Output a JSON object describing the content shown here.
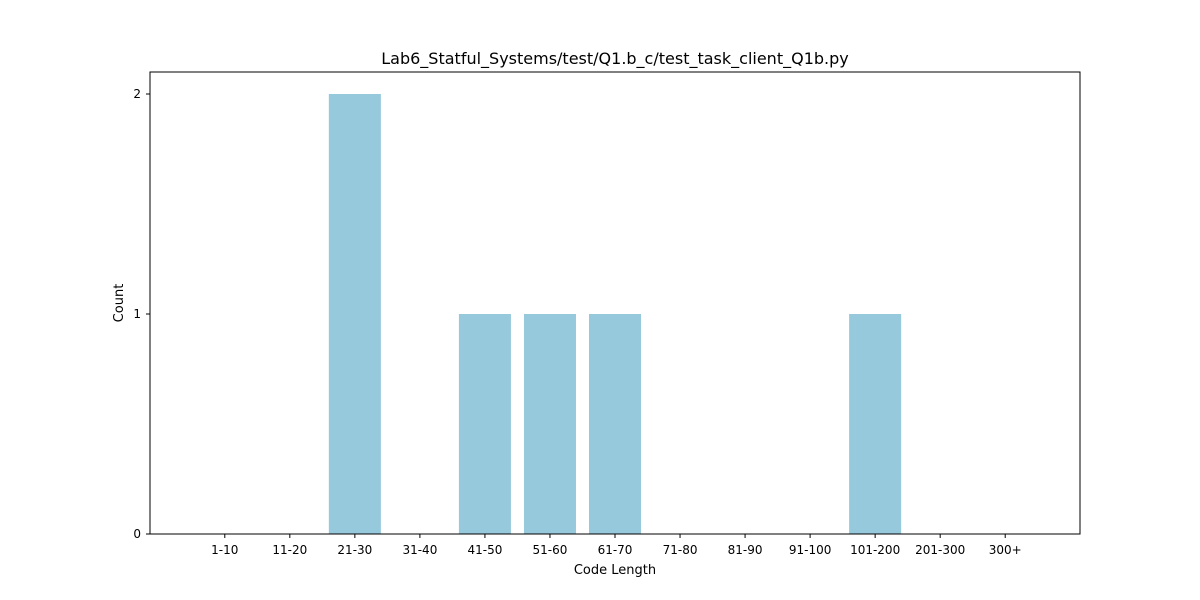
{
  "chart_data": {
    "type": "bar",
    "title": "Lab6_Statful_Systems/test/Q1.b_c/test_task_client_Q1b.py",
    "xlabel": "Code Length",
    "ylabel": "Count",
    "categories": [
      "1-10",
      "11-20",
      "21-30",
      "31-40",
      "41-50",
      "51-60",
      "61-70",
      "71-80",
      "81-90",
      "91-100",
      "101-200",
      "201-300",
      "300+"
    ],
    "values": [
      0,
      0,
      2,
      0,
      1,
      1,
      1,
      0,
      0,
      0,
      1,
      0,
      0
    ],
    "ylim": [
      0,
      2.1
    ],
    "yticks": [
      0,
      1,
      2
    ],
    "bar_color": "#96c9dc",
    "grid": false,
    "legend": "none"
  }
}
